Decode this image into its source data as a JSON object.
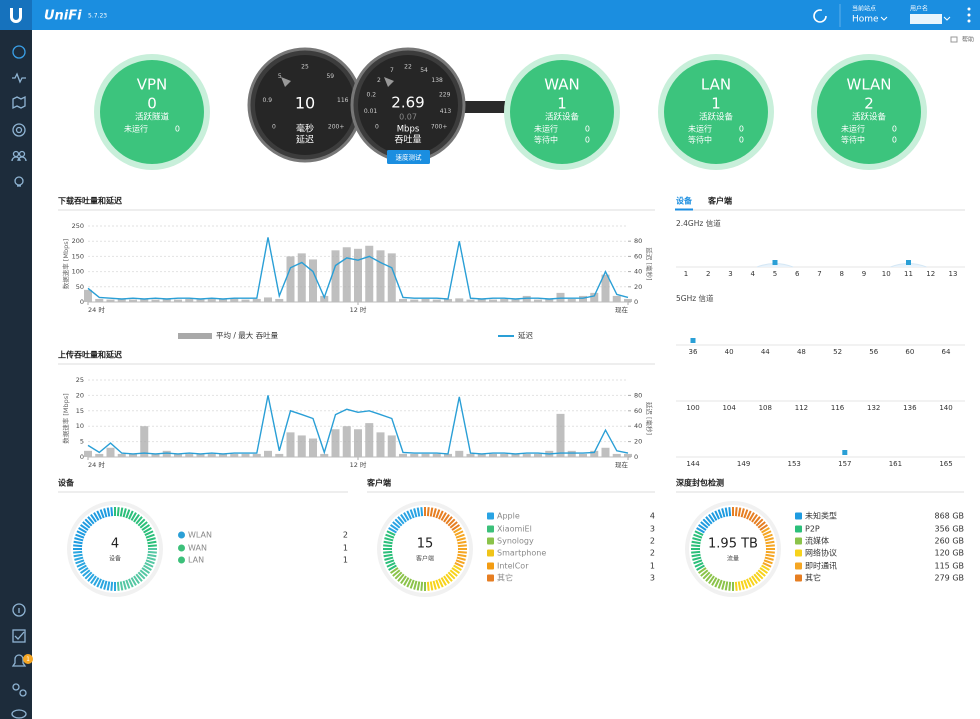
{
  "header": {
    "logo": "UniFi",
    "version": "5.7.23",
    "site_label": "当前站点",
    "site": "Home",
    "user": "用户名"
  },
  "sidebar": {
    "badge": "1"
  },
  "help": "帮助",
  "status": {
    "vpn": {
      "title": "VPN",
      "count": "0",
      "count_label": "活跃隧道",
      "rows": [
        {
          "label": "未运行",
          "value": "0"
        }
      ]
    },
    "latency": {
      "value": "10",
      "unit": "毫秒",
      "label": "延迟",
      "ticks": [
        "0",
        "0.9",
        "5",
        "25",
        "59",
        "116",
        "200+"
      ]
    },
    "throughput": {
      "value": "2.69",
      "sub": "0.07",
      "unit": "Mbps",
      "label": "吞吐量",
      "ticks": [
        "0",
        "0.01",
        "0.2",
        "2",
        "7",
        "22",
        "54",
        "138",
        "229",
        "413",
        "700+"
      ],
      "button": "速度测试"
    },
    "wan": {
      "title": "WAN",
      "count": "1",
      "count_label": "活跃设备",
      "rows": [
        {
          "label": "未运行",
          "value": "0"
        },
        {
          "label": "等待中",
          "value": "0"
        }
      ]
    },
    "lan": {
      "title": "LAN",
      "count": "1",
      "count_label": "活跃设备",
      "rows": [
        {
          "label": "未运行",
          "value": "0"
        },
        {
          "label": "等待中",
          "value": "0"
        }
      ]
    },
    "wlan": {
      "title": "WLAN",
      "count": "2",
      "count_label": "活跃设备",
      "rows": [
        {
          "label": "未运行",
          "value": "0"
        },
        {
          "label": "等待中",
          "value": "0"
        }
      ]
    }
  },
  "download": {
    "title": "下载吞吐量和延迟",
    "ylabel": "数据速率 [Mbps]",
    "y2label": "延迟 [毫秒]",
    "ylim": [
      0,
      250
    ],
    "yticks": [
      0,
      50,
      100,
      150,
      200,
      250
    ],
    "y2lim": [
      0,
      100
    ],
    "y2ticks": [
      0,
      20,
      40,
      60,
      80
    ],
    "xlim": [
      0,
      24
    ],
    "xticks": [
      {
        "value": 0,
        "label": "24 时"
      },
      {
        "value": 12,
        "label": "12 时"
      },
      {
        "value": 24,
        "label": "现在"
      }
    ],
    "x": [
      0,
      0.5,
      1,
      1.5,
      2,
      2.5,
      3,
      3.5,
      4,
      4.5,
      5,
      5.5,
      6,
      6.5,
      7,
      7.5,
      8,
      8.5,
      9,
      9.5,
      10,
      10.5,
      11,
      11.5,
      12,
      12.5,
      13,
      13.5,
      14,
      14.5,
      15,
      15.5,
      16,
      16.5,
      17,
      17.5,
      18,
      18.5,
      19,
      19.5,
      20,
      20.5,
      21,
      21.5,
      22,
      22.5,
      23,
      23.5,
      24
    ],
    "series": [
      {
        "name": "平均 / 最大 吞吐量",
        "type": "bar",
        "color": "#a9a9a9",
        "values": [
          40,
          10,
          8,
          10,
          8,
          10,
          8,
          12,
          8,
          10,
          8,
          10,
          10,
          12,
          8,
          10,
          15,
          10,
          150,
          160,
          140,
          20,
          170,
          180,
          175,
          185,
          170,
          160,
          10,
          8,
          10,
          8,
          10,
          12,
          8,
          10,
          8,
          10,
          8,
          20,
          8,
          10,
          30,
          10,
          20,
          30,
          90,
          20,
          10
        ]
      },
      {
        "name": "延迟",
        "type": "line",
        "axis": "y2",
        "color": "#2a9fd6",
        "values": [
          18,
          6,
          5,
          4,
          5,
          4,
          5,
          4,
          5,
          5,
          4,
          5,
          4,
          5,
          5,
          5,
          85,
          8,
          45,
          52,
          40,
          6,
          48,
          58,
          55,
          60,
          52,
          45,
          6,
          5,
          5,
          5,
          4,
          80,
          5,
          4,
          5,
          5,
          4,
          5,
          5,
          4,
          5,
          5,
          5,
          8,
          40,
          10,
          6
        ]
      }
    ]
  },
  "upload": {
    "title": "上传吞吐量和延迟",
    "ylabel": "数据速率 [Mbps]",
    "y2label": "延迟 [毫秒]",
    "ylim": [
      0,
      25
    ],
    "yticks": [
      0,
      5,
      10,
      15,
      20,
      25
    ],
    "y2lim": [
      0,
      100
    ],
    "y2ticks": [
      0,
      20,
      40,
      60,
      80
    ],
    "xlim": [
      0,
      24
    ],
    "xticks": [
      {
        "value": 0,
        "label": "24 时"
      },
      {
        "value": 12,
        "label": "12 时"
      },
      {
        "value": 24,
        "label": "现在"
      }
    ],
    "x": [
      0,
      0.5,
      1,
      1.5,
      2,
      2.5,
      3,
      3.5,
      4,
      4.5,
      5,
      5.5,
      6,
      6.5,
      7,
      7.5,
      8,
      8.5,
      9,
      9.5,
      10,
      10.5,
      11,
      11.5,
      12,
      12.5,
      13,
      13.5,
      14,
      14.5,
      15,
      15.5,
      16,
      16.5,
      17,
      17.5,
      18,
      18.5,
      19,
      19.5,
      20,
      20.5,
      21,
      21.5,
      22,
      22.5,
      23,
      23.5,
      24
    ],
    "series": [
      {
        "type": "bar",
        "color": "#a9a9a9",
        "values": [
          2,
          1,
          3,
          1,
          1,
          10,
          1,
          2,
          1,
          1,
          1,
          1,
          1,
          1,
          1,
          1,
          2,
          1,
          8,
          7,
          6,
          1,
          9,
          10,
          9,
          11,
          8,
          7,
          1,
          1,
          1,
          1,
          1,
          2,
          1,
          1,
          1,
          1,
          1,
          1,
          1,
          2,
          14,
          2,
          1,
          2,
          3,
          1,
          1
        ]
      },
      {
        "type": "line",
        "axis": "y2",
        "color": "#2a9fd6",
        "values": [
          15,
          6,
          18,
          5,
          4,
          5,
          4,
          5,
          4,
          5,
          4,
          5,
          4,
          5,
          5,
          5,
          80,
          8,
          60,
          55,
          50,
          6,
          55,
          62,
          58,
          60,
          55,
          50,
          6,
          5,
          5,
          5,
          4,
          78,
          5,
          4,
          5,
          5,
          4,
          5,
          5,
          4,
          5,
          5,
          5,
          6,
          35,
          8,
          5
        ]
      }
    ]
  },
  "radio": {
    "tabs": [
      "设备",
      "客户端"
    ],
    "band24": {
      "title": "2.4GHz 信道",
      "channels": [
        1,
        2,
        3,
        4,
        5,
        6,
        7,
        8,
        9,
        10,
        11,
        12,
        13
      ],
      "active": [
        5,
        11
      ]
    },
    "band5": {
      "title": "5GHz 信道",
      "rows": [
        [
          36,
          40,
          44,
          48,
          52,
          56,
          60,
          64
        ],
        [
          100,
          104,
          108,
          112,
          116,
          132,
          136,
          140
        ],
        [
          144,
          149,
          153,
          157,
          161,
          165
        ]
      ],
      "active": [
        36,
        157
      ]
    }
  },
  "devices": {
    "title": "设备",
    "total": "4",
    "total_label": "设备",
    "items": [
      {
        "name": "WLAN",
        "value": "2"
      },
      {
        "name": "WAN",
        "value": "1"
      },
      {
        "name": "LAN",
        "value": "1"
      }
    ]
  },
  "clients": {
    "title": "客户端",
    "total": "15",
    "total_label": "客户端",
    "items": [
      {
        "name": "Apple",
        "value": "4",
        "color": "#29a3e3"
      },
      {
        "name": "XiaomiEl",
        "value": "3",
        "color": "#3cc07a"
      },
      {
        "name": "Synology",
        "value": "2",
        "color": "#8bc34a"
      },
      {
        "name": "Smartphone",
        "value": "2",
        "color": "#f0c419"
      },
      {
        "name": "IntelCor",
        "value": "1",
        "color": "#f39c12"
      },
      {
        "name": "其它",
        "value": "3",
        "color": "#e67e22"
      }
    ]
  },
  "dpi": {
    "title": "深度封包检测",
    "total": "1.95 TB",
    "total_label": "流量",
    "items": [
      {
        "name": "未知类型",
        "value": "868 GB",
        "color": "#1e9be0"
      },
      {
        "name": "P2P",
        "value": "356 GB",
        "color": "#2bbf7a"
      },
      {
        "name": "流媒体",
        "value": "260 GB",
        "color": "#8bc34a"
      },
      {
        "name": "网络协议",
        "value": "120 GB",
        "color": "#f7d31c"
      },
      {
        "name": "即时通讯",
        "value": "115 GB",
        "color": "#f5a623"
      },
      {
        "name": "其它",
        "value": "279 GB",
        "color": "#e67e22"
      }
    ]
  }
}
